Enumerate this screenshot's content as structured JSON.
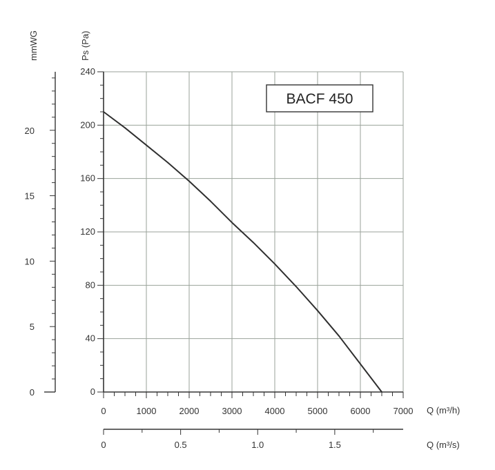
{
  "chart_data": {
    "type": "line",
    "model_label": "BACF 450",
    "series": [
      {
        "x": [
          0,
          500,
          1000,
          1500,
          2000,
          2500,
          3000,
          3500,
          4000,
          4500,
          5000,
          5500,
          6000,
          6500
        ],
        "y": [
          210,
          198,
          185,
          172,
          158,
          143,
          127,
          112,
          96,
          79,
          61,
          42,
          21,
          0
        ]
      }
    ],
    "x_axis": {
      "label": "Q (m³/h)",
      "range": [
        0,
        7000
      ],
      "ticks": [
        "0",
        "1000",
        "2000",
        "3000",
        "4000",
        "5000",
        "6000",
        "7000"
      ]
    },
    "x2_axis": {
      "label": "Q (m³/s)",
      "range": [
        0,
        1.944
      ],
      "ticks": [
        "0",
        "0.5",
        "1.0",
        "1.5"
      ]
    },
    "y_axis": {
      "label": "Ps (Pa)",
      "range": [
        0,
        240
      ],
      "ticks": [
        "0",
        "40",
        "80",
        "120",
        "160",
        "200",
        "240"
      ]
    },
    "y2_axis": {
      "label": "mmWG",
      "range": [
        0,
        24.47
      ],
      "ticks": [
        "0",
        "5",
        "10",
        "15",
        "20"
      ]
    },
    "grid": true
  }
}
